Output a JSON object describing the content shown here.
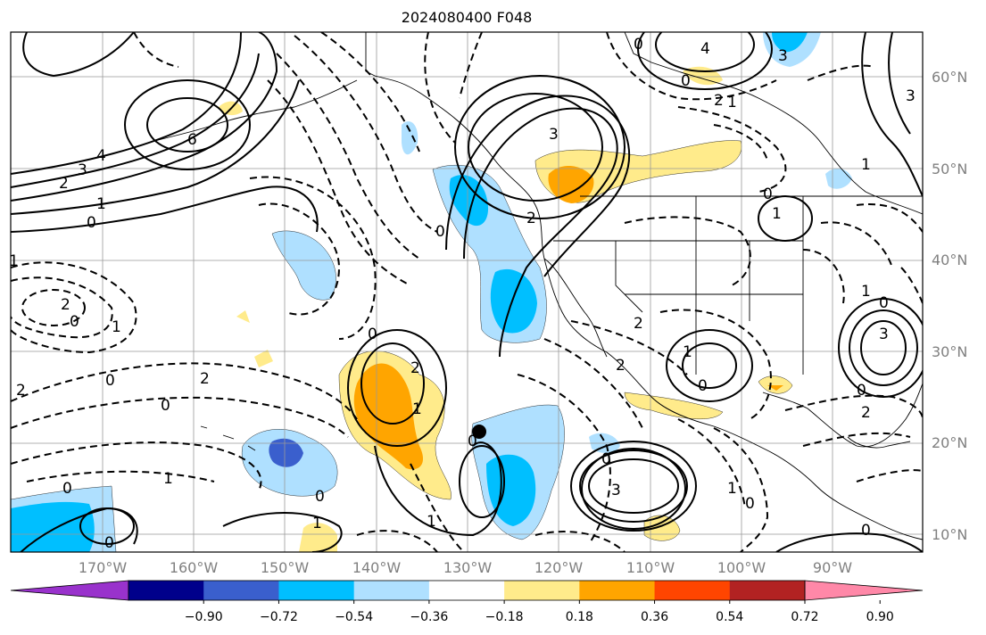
{
  "title": "2024080400 F048",
  "lat_labels": [
    "60°N",
    "50°N",
    "40°N",
    "30°N",
    "20°N",
    "10°N"
  ],
  "lon_labels": [
    "170°W",
    "160°W",
    "150°W",
    "140°W",
    "130°W",
    "120°W",
    "110°W",
    "100°W",
    "90°W"
  ],
  "colorbar": {
    "ticks": [
      "−0.90",
      "−0.72",
      "−0.54",
      "−0.36",
      "−0.18",
      "0.18",
      "0.36",
      "0.54",
      "0.72",
      "0.90"
    ],
    "colors": [
      "#9932cc",
      "#00008b",
      "#3a5fcd",
      "#00bfff",
      "#afe0ff",
      "#ffffff",
      "#ffeb8b",
      "#ffa500",
      "#ff4500",
      "#b22222",
      "#ff88a8"
    ]
  },
  "contour_labels": {
    "gulf_high": [
      "6",
      "4",
      "3",
      "2",
      "1",
      "0"
    ],
    "pacific_west": [
      "1",
      "2",
      "0",
      "1",
      "0",
      "2",
      "2",
      "0",
      "1",
      "0"
    ],
    "bc_high": [
      "3",
      "2",
      "0"
    ],
    "baja_high": [
      "0",
      "2",
      "1"
    ],
    "misc": [
      "0",
      "1",
      "0",
      "1",
      "0",
      "3",
      "3",
      "0",
      "4",
      "0",
      "1",
      "2",
      "3",
      "0",
      "1",
      "1",
      "0",
      "1",
      "0",
      "2",
      "3",
      "1",
      "0",
      "0",
      "1",
      "2",
      "2",
      "0",
      "0"
    ]
  },
  "marker": {
    "label": "storm-center"
  }
}
